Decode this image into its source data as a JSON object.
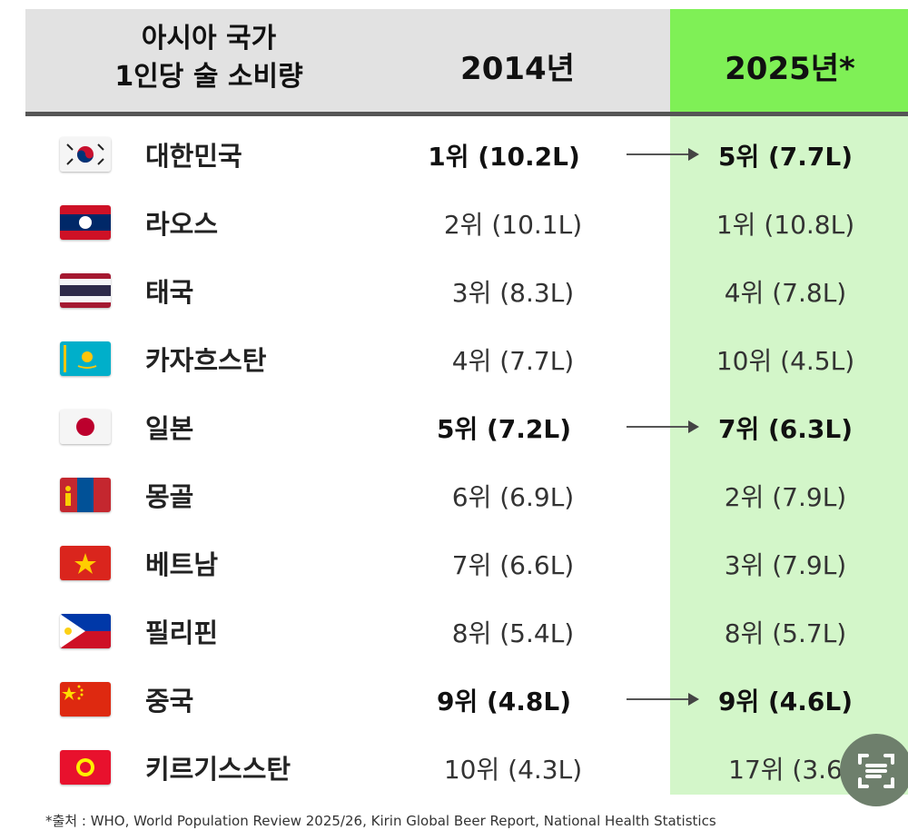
{
  "header": {
    "title_line1": "아시아 국가",
    "title_line2": "1인당 술 소비량",
    "col_2014": "2014년",
    "col_2025": "2025년*"
  },
  "colors": {
    "header_gray": "#e2e2e2",
    "header_green": "#7ff056",
    "column_green": "#d3f6c9"
  },
  "rows": [
    {
      "country": "대한민국",
      "flag": "south-korea",
      "v2014": "1위 (10.2L)",
      "v2025": "5위 (7.7L)",
      "highlight": true
    },
    {
      "country": "라오스",
      "flag": "laos",
      "v2014": "2위 (10.1L)",
      "v2025": "1위 (10.8L)",
      "highlight": false
    },
    {
      "country": "태국",
      "flag": "thailand",
      "v2014": "3위 (8.3L)",
      "v2025": "4위 (7.8L)",
      "highlight": false
    },
    {
      "country": "카자흐스탄",
      "flag": "kazakhstan",
      "v2014": "4위 (7.7L)",
      "v2025": "10위 (4.5L)",
      "highlight": false
    },
    {
      "country": "일본",
      "flag": "japan",
      "v2014": "5위 (7.2L)",
      "v2025": "7위 (6.3L)",
      "highlight": true
    },
    {
      "country": "몽골",
      "flag": "mongolia",
      "v2014": "6위 (6.9L)",
      "v2025": "2위 (7.9L)",
      "highlight": false
    },
    {
      "country": "베트남",
      "flag": "vietnam",
      "v2014": "7위 (6.6L)",
      "v2025": "3위 (7.9L)",
      "highlight": false
    },
    {
      "country": "필리핀",
      "flag": "philippines",
      "v2014": "8위 (5.4L)",
      "v2025": "8위 (5.7L)",
      "highlight": false
    },
    {
      "country": "중국",
      "flag": "china",
      "v2014": "9위 (4.8L)",
      "v2025": "9위 (4.6L)",
      "highlight": true
    },
    {
      "country": "키르기스스탄",
      "flag": "kyrgyzstan",
      "v2014": "10위 (4.3L)",
      "v2025": "17위 (3.6",
      "highlight": false
    }
  ],
  "footer": {
    "source": "*출처 : WHO, World Population Review 2025/26, Kirin Global Beer Report, National Health Statistics"
  },
  "overlay": {
    "icon": "scan-text-icon"
  }
}
